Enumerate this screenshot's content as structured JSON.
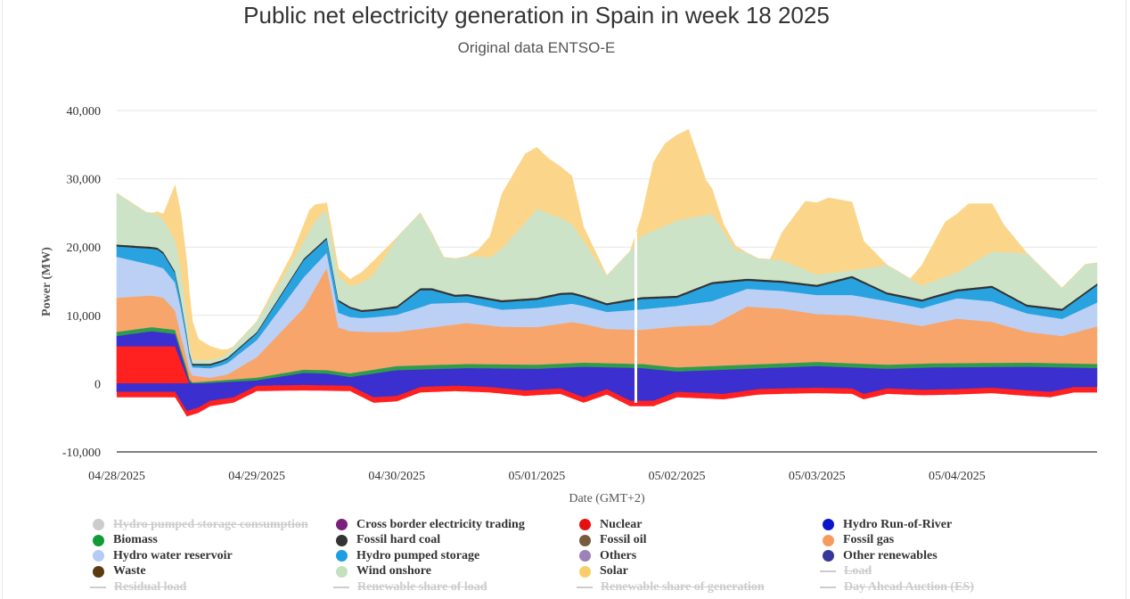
{
  "chart_data": {
    "type": "area",
    "title": "Public net electricity generation in Spain in week 18 2025",
    "subtitle": "Original data ENTSO-E",
    "xlabel": "Date (GMT+2)",
    "ylabel": "Power (MW)",
    "ylim": [
      -10000,
      40000
    ],
    "y_ticks": [
      "-10,000",
      "0",
      "10,000",
      "20,000",
      "30,000",
      "40,000"
    ],
    "x_ticks": [
      "04/28/2025",
      "04/29/2025",
      "04/30/2025",
      "05/01/2025",
      "05/02/2025",
      "05/03/2025",
      "05/04/2025"
    ],
    "x_unit": "hours since 04/28/2025 00:00",
    "xlim": [
      0,
      168
    ],
    "stack_order": [
      "Nuclear",
      "Hydro Run-of-River",
      "Biomass",
      "Fossil gas",
      "Hydro water reservoir",
      "Hydro pumped storage",
      "Fossil hard coal",
      "Wind onshore",
      "Solar"
    ],
    "negative_series": [
      "Cross border electricity trading",
      "Hydro pumped storage consumption"
    ],
    "series": [
      {
        "name": "Nuclear",
        "color": "#ff2020",
        "points": [
          [
            0,
            5500
          ],
          [
            10,
            5500
          ],
          [
            12.5,
            0
          ],
          [
            24,
            0
          ],
          [
            30,
            0
          ],
          [
            48,
            0
          ],
          [
            72,
            0
          ],
          [
            96,
            0
          ],
          [
            120,
            0
          ],
          [
            144,
            0
          ],
          [
            168,
            0
          ]
        ]
      },
      {
        "name": "Hydro Run-of-River",
        "color": "#3b2fd0",
        "points": [
          [
            0,
            1500
          ],
          [
            6,
            2200
          ],
          [
            10,
            1800
          ],
          [
            13,
            0
          ],
          [
            24,
            500
          ],
          [
            32,
            1600
          ],
          [
            36,
            1500
          ],
          [
            40,
            1000
          ],
          [
            48,
            2000
          ],
          [
            60,
            2300
          ],
          [
            72,
            2200
          ],
          [
            80,
            2500
          ],
          [
            90,
            2300
          ],
          [
            96,
            1800
          ],
          [
            108,
            2200
          ],
          [
            120,
            2600
          ],
          [
            132,
            2200
          ],
          [
            140,
            2400
          ],
          [
            156,
            2500
          ],
          [
            168,
            2300
          ]
        ]
      },
      {
        "name": "Biomass",
        "color": "#2e9c4c",
        "points": [
          [
            0,
            600
          ],
          [
            12,
            600
          ],
          [
            13,
            200
          ],
          [
            24,
            400
          ],
          [
            48,
            600
          ],
          [
            96,
            600
          ],
          [
            168,
            600
          ]
        ]
      },
      {
        "name": "Fossil gas",
        "color": "#f7a56b",
        "points": [
          [
            0,
            5000
          ],
          [
            8,
            4500
          ],
          [
            11,
            2000
          ],
          [
            13,
            1000
          ],
          [
            16,
            500
          ],
          [
            19,
            800
          ],
          [
            24,
            3000
          ],
          [
            32,
            9000
          ],
          [
            36,
            15000
          ],
          [
            38,
            6500
          ],
          [
            44,
            5500
          ],
          [
            48,
            5000
          ],
          [
            54,
            5500
          ],
          [
            60,
            6000
          ],
          [
            66,
            5500
          ],
          [
            72,
            5500
          ],
          [
            78,
            6000
          ],
          [
            84,
            5000
          ],
          [
            90,
            5000
          ],
          [
            96,
            6000
          ],
          [
            102,
            6000
          ],
          [
            108,
            8500
          ],
          [
            114,
            8000
          ],
          [
            120,
            7000
          ],
          [
            126,
            7000
          ],
          [
            132,
            6500
          ],
          [
            138,
            5500
          ],
          [
            144,
            6500
          ],
          [
            150,
            6000
          ],
          [
            156,
            4500
          ],
          [
            162,
            4000
          ],
          [
            168,
            5500
          ]
        ]
      },
      {
        "name": "Hydro water reservoir",
        "color": "#bcd0f5",
        "points": [
          [
            0,
            6000
          ],
          [
            6,
            4500
          ],
          [
            11,
            4000
          ],
          [
            13,
            1200
          ],
          [
            18,
            1500
          ],
          [
            24,
            2500
          ],
          [
            32,
            4500
          ],
          [
            36,
            2200
          ],
          [
            42,
            2000
          ],
          [
            48,
            2500
          ],
          [
            54,
            3500
          ],
          [
            60,
            3000
          ],
          [
            66,
            2500
          ],
          [
            72,
            2800
          ],
          [
            78,
            2700
          ],
          [
            84,
            2500
          ],
          [
            90,
            3000
          ],
          [
            96,
            3000
          ],
          [
            102,
            3500
          ],
          [
            108,
            2600
          ],
          [
            114,
            2600
          ],
          [
            120,
            2800
          ],
          [
            126,
            3000
          ],
          [
            132,
            2800
          ],
          [
            138,
            2600
          ],
          [
            144,
            3000
          ],
          [
            150,
            3000
          ],
          [
            156,
            2700
          ],
          [
            162,
            2500
          ],
          [
            168,
            3500
          ]
        ]
      },
      {
        "name": "Hydro pumped storage",
        "color": "#29a3e0",
        "points": [
          [
            0,
            1500
          ],
          [
            7,
            2500
          ],
          [
            11,
            1000
          ],
          [
            13,
            300
          ],
          [
            18,
            500
          ],
          [
            24,
            1000
          ],
          [
            32,
            2500
          ],
          [
            36,
            2000
          ],
          [
            42,
            900
          ],
          [
            48,
            1000
          ],
          [
            52,
            2500
          ],
          [
            58,
            900
          ],
          [
            66,
            1100
          ],
          [
            72,
            1200
          ],
          [
            76,
            1500
          ],
          [
            84,
            1000
          ],
          [
            90,
            1500
          ],
          [
            96,
            1200
          ],
          [
            102,
            2500
          ],
          [
            108,
            1200
          ],
          [
            120,
            1200
          ],
          [
            126,
            2500
          ],
          [
            132,
            1000
          ],
          [
            144,
            1000
          ],
          [
            150,
            2000
          ],
          [
            156,
            1000
          ],
          [
            162,
            1200
          ],
          [
            168,
            2500
          ]
        ]
      },
      {
        "name": "Fossil hard coal",
        "color": "#333333",
        "points": [
          [
            0,
            300
          ],
          [
            24,
            200
          ],
          [
            48,
            300
          ],
          [
            96,
            300
          ],
          [
            168,
            300
          ]
        ]
      },
      {
        "name": "Wind onshore",
        "color": "#cde3c8",
        "points": [
          [
            0,
            7500
          ],
          [
            5,
            5000
          ],
          [
            11,
            4500
          ],
          [
            13,
            600
          ],
          [
            18,
            500
          ],
          [
            24,
            1500
          ],
          [
            32,
            2500
          ],
          [
            34,
            4000
          ],
          [
            36,
            4000
          ],
          [
            40,
            3000
          ],
          [
            44,
            5000
          ],
          [
            48,
            10000
          ],
          [
            52,
            11000
          ],
          [
            56,
            5000
          ],
          [
            60,
            5500
          ],
          [
            64,
            6000
          ],
          [
            66,
            7500
          ],
          [
            72,
            13000
          ],
          [
            78,
            10000
          ],
          [
            84,
            4000
          ],
          [
            88,
            7000
          ],
          [
            90,
            9000
          ],
          [
            96,
            11000
          ],
          [
            102,
            10000
          ],
          [
            106,
            4500
          ],
          [
            110,
            3000
          ],
          [
            114,
            3000
          ],
          [
            118,
            2000
          ],
          [
            120,
            1500
          ],
          [
            126,
            800
          ],
          [
            132,
            4000
          ],
          [
            138,
            2000
          ],
          [
            144,
            2500
          ],
          [
            150,
            5000
          ],
          [
            156,
            7500
          ],
          [
            162,
            3000
          ],
          [
            166,
            4000
          ],
          [
            168,
            3000
          ]
        ]
      },
      {
        "name": "Solar",
        "color": "#fbd68a",
        "points": [
          [
            0,
            0
          ],
          [
            6,
            0
          ],
          [
            8,
            800
          ],
          [
            10,
            8000
          ],
          [
            12,
            8000
          ],
          [
            14,
            3000
          ],
          [
            16,
            2000
          ],
          [
            18,
            1000
          ],
          [
            20,
            0
          ],
          [
            24,
            0
          ],
          [
            30,
            1000
          ],
          [
            33,
            3000
          ],
          [
            36,
            1000
          ],
          [
            40,
            1000
          ],
          [
            44,
            2000
          ],
          [
            48,
            0
          ],
          [
            54,
            0
          ],
          [
            60,
            0
          ],
          [
            62,
            1000
          ],
          [
            64,
            3000
          ],
          [
            66,
            8000
          ],
          [
            70,
            10000
          ],
          [
            74,
            8000
          ],
          [
            78,
            7000
          ],
          [
            80,
            2000
          ],
          [
            84,
            0
          ],
          [
            88,
            0
          ],
          [
            90,
            3000
          ],
          [
            92,
            10000
          ],
          [
            94,
            12000
          ],
          [
            98,
            13000
          ],
          [
            101,
            5000
          ],
          [
            104,
            1000
          ],
          [
            108,
            0
          ],
          [
            112,
            0
          ],
          [
            114,
            4000
          ],
          [
            118,
            10000
          ],
          [
            122,
            11000
          ],
          [
            126,
            10000
          ],
          [
            128,
            4000
          ],
          [
            132,
            0
          ],
          [
            136,
            0
          ],
          [
            138,
            3000
          ],
          [
            142,
            8000
          ],
          [
            146,
            9000
          ],
          [
            150,
            7000
          ],
          [
            152,
            4000
          ],
          [
            156,
            0
          ],
          [
            162,
            0
          ],
          [
            168,
            0
          ]
        ]
      },
      {
        "name": "Cross border electricity trading",
        "color": "#3b2fd0",
        "points": [
          [
            0,
            -1200
          ],
          [
            10,
            -1200
          ],
          [
            12,
            -4000
          ],
          [
            14,
            -3500
          ],
          [
            16,
            -2500
          ],
          [
            20,
            -2000
          ],
          [
            24,
            -300
          ],
          [
            32,
            -200
          ],
          [
            40,
            -300
          ],
          [
            44,
            -2000
          ],
          [
            48,
            -1800
          ],
          [
            52,
            -500
          ],
          [
            58,
            -300
          ],
          [
            64,
            -500
          ],
          [
            70,
            -1000
          ],
          [
            76,
            -700
          ],
          [
            80,
            -2000
          ],
          [
            84,
            -800
          ],
          [
            88,
            -2500
          ],
          [
            92,
            -2500
          ],
          [
            96,
            -1200
          ],
          [
            104,
            -1500
          ],
          [
            110,
            -800
          ],
          [
            114,
            -700
          ],
          [
            120,
            -600
          ],
          [
            126,
            -700
          ],
          [
            128,
            -1500
          ],
          [
            132,
            -700
          ],
          [
            138,
            -900
          ],
          [
            144,
            -800
          ],
          [
            150,
            -600
          ],
          [
            156,
            -1000
          ],
          [
            160,
            -1200
          ],
          [
            164,
            -500
          ],
          [
            168,
            -500
          ]
        ]
      }
    ]
  },
  "legend": {
    "items": [
      {
        "label": "Hydro pumped storage consumption",
        "color": "#cccccc",
        "symbol": "dot",
        "hidden": true
      },
      {
        "label": "Cross border electricity trading",
        "color": "#7b1f7e",
        "symbol": "dot",
        "hidden": false
      },
      {
        "label": "Nuclear",
        "color": "#e8100f",
        "symbol": "dot",
        "hidden": false
      },
      {
        "label": "Hydro Run-of-River",
        "color": "#0b14c8",
        "symbol": "dot",
        "hidden": false
      },
      {
        "label": "Biomass",
        "color": "#129a36",
        "symbol": "dot",
        "hidden": false
      },
      {
        "label": "Fossil hard coal",
        "color": "#333333",
        "symbol": "dot",
        "hidden": false
      },
      {
        "label": "Fossil oil",
        "color": "#7a5a3c",
        "symbol": "dot",
        "hidden": false
      },
      {
        "label": "Fossil gas",
        "color": "#f79a5e",
        "symbol": "dot",
        "hidden": false
      },
      {
        "label": "Hydro water reservoir",
        "color": "#b3cbf5",
        "symbol": "dot",
        "hidden": false
      },
      {
        "label": "Hydro pumped storage",
        "color": "#1e9ee0",
        "symbol": "dot",
        "hidden": false
      },
      {
        "label": "Others",
        "color": "#9b82b8",
        "symbol": "dot",
        "hidden": false
      },
      {
        "label": "Other renewables",
        "color": "#35379a",
        "symbol": "dot",
        "hidden": false
      },
      {
        "label": "Waste",
        "color": "#5b3a10",
        "symbol": "dot",
        "hidden": false
      },
      {
        "label": "Wind onshore",
        "color": "#c4e0be",
        "symbol": "dot",
        "hidden": false
      },
      {
        "label": "Solar",
        "color": "#f9cd6c",
        "symbol": "dot",
        "hidden": false
      },
      {
        "label": "Load",
        "color": "#cccccc",
        "symbol": "line",
        "hidden": true
      },
      {
        "label": "Residual load",
        "color": "#cccccc",
        "symbol": "line",
        "hidden": true
      },
      {
        "label": "Renewable share of load",
        "color": "#cccccc",
        "symbol": "line",
        "hidden": true
      },
      {
        "label": "Renewable share of generation",
        "color": "#cccccc",
        "symbol": "line",
        "hidden": true
      },
      {
        "label": "Day Ahead Auction (ES)",
        "color": "#cccccc",
        "symbol": "line",
        "hidden": true
      }
    ]
  }
}
